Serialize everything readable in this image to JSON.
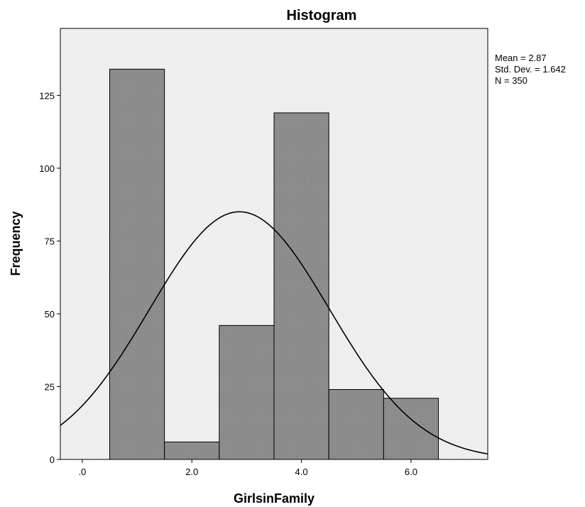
{
  "chart_data": {
    "type": "bar",
    "title": "Histogram",
    "xlabel": "GirlsinFamily",
    "ylabel": "Frequency",
    "xlim": [
      -0.4,
      7.4
    ],
    "ylim": [
      0,
      148
    ],
    "x_ticks": [
      {
        "value": 0,
        "label": ".0"
      },
      {
        "value": 2,
        "label": "2.0"
      },
      {
        "value": 4,
        "label": "4.0"
      },
      {
        "value": 6,
        "label": "6.0"
      }
    ],
    "y_ticks": [
      {
        "value": 0,
        "label": "0"
      },
      {
        "value": 25,
        "label": "25"
      },
      {
        "value": 50,
        "label": "50"
      },
      {
        "value": 75,
        "label": "75"
      },
      {
        "value": 100,
        "label": "100"
      },
      {
        "value": 125,
        "label": "125"
      }
    ],
    "bins": [
      {
        "start": 0.5,
        "end": 1.5,
        "count": 134
      },
      {
        "start": 1.5,
        "end": 2.5,
        "count": 6
      },
      {
        "start": 2.5,
        "end": 3.5,
        "count": 46
      },
      {
        "start": 3.5,
        "end": 4.5,
        "count": 119
      },
      {
        "start": 4.5,
        "end": 5.5,
        "count": 24
      },
      {
        "start": 5.5,
        "end": 6.5,
        "count": 21
      }
    ],
    "normal_curve": {
      "mean": 2.87,
      "sd": 1.642,
      "n": 350,
      "bin_width": 1
    },
    "stats_lines": [
      "Mean = 2.87",
      "Std. Dev. = 1.642",
      "N = 350"
    ],
    "colors": {
      "plot_background": "#f0f0f0",
      "bar_fill": "#8c8c8c",
      "bar_stroke": "#000000",
      "curve": "#000000"
    },
    "grid": false,
    "legend": "none"
  }
}
